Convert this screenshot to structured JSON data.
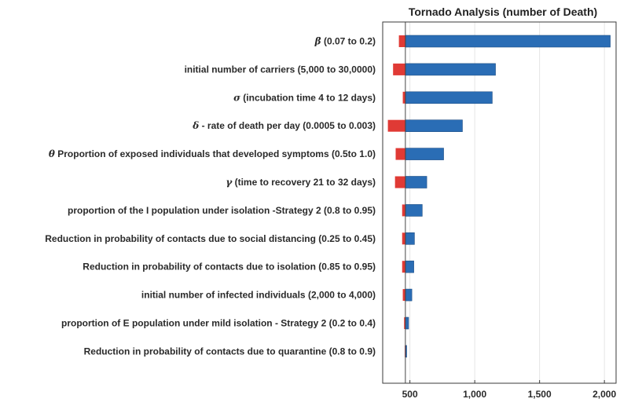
{
  "chart_data": {
    "type": "bar",
    "orientation": "horizontal",
    "title": "Tornado Analysis (number of Death)",
    "xlabel": "",
    "ylabel": "",
    "baseline": 465,
    "xlim": [
      290,
      2090
    ],
    "xticks": [
      500,
      1000,
      1500,
      2000
    ],
    "xtick_labels": [
      "500",
      "1,000",
      "1,500",
      "2,000"
    ],
    "grid": true,
    "legend": "none",
    "colors": {
      "low": "#e03a35",
      "high": "#2a6db5"
    },
    "categories": [
      {
        "greek": "β",
        "rest": " (0.07 to 0.2)"
      },
      {
        "greek": "",
        "rest": "initial number of carriers (5,000 to 30,0000)"
      },
      {
        "greek": "σ",
        "rest": " (incubation time 4 to 12 days)"
      },
      {
        "greek": "δ",
        "rest": " - rate of death per day (0.0005 to 0.003)"
      },
      {
        "greek": "θ",
        "rest": " Proportion of exposed individuals that developed symptoms  (0.5to 1.0)"
      },
      {
        "greek": "γ",
        "rest": " (time to recovery 21 to 32 days)"
      },
      {
        "greek": "",
        "rest": "proportion of the I population under isolation -Strategy 2 (0.8 to 0.95)"
      },
      {
        "greek": "",
        "rest": "Reduction in probability of contacts due to social distancing (0.25 to 0.45)"
      },
      {
        "greek": "",
        "rest": "Reduction in probability of contacts due to isolation (0.85 to 0.95)"
      },
      {
        "greek": "",
        "rest": "initial number of infected individuals (2,000 to 4,000)"
      },
      {
        "greek": "",
        "rest": "proportion of E population under mild isolation - Strategy 2 (0.2 to 0.4)"
      },
      {
        "greek": "",
        "rest": "Reduction in probability of contacts due to quarantine (0.8 to 0.9)"
      }
    ],
    "series": [
      {
        "values_low": [
          415,
          370,
          445,
          330,
          390,
          385,
          440,
          440,
          440,
          445,
          455,
          460
        ]
      },
      {
        "values_high": [
          2045,
          1160,
          1135,
          905,
          760,
          630,
          595,
          535,
          530,
          515,
          490,
          475
        ]
      }
    ]
  }
}
